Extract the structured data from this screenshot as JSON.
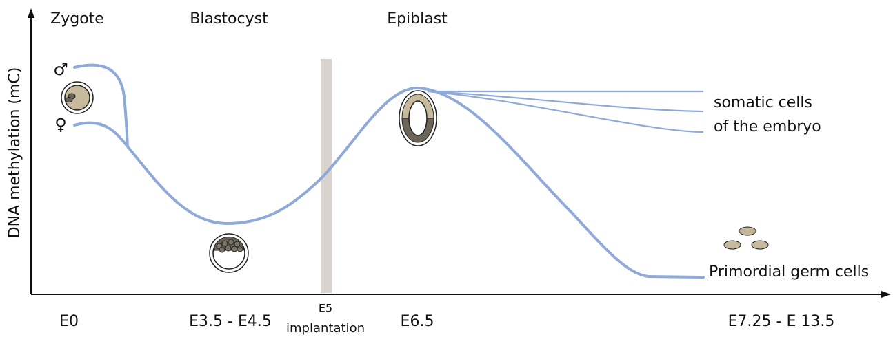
{
  "stages": [
    {
      "label": "Zygote",
      "time": "E0"
    },
    {
      "label": "Blastocyst",
      "time": "E3.5 - E4.5"
    },
    {
      "label": "Epiblast",
      "time": "E6.5"
    }
  ],
  "implantation": {
    "time": "E5",
    "label": "implantation"
  },
  "late_time": "E7.25 - E 13.5",
  "y_axis_label": "DNA methylation (mC)",
  "male_symbol": "♂",
  "female_symbol": "♀",
  "somatic_label": [
    "somatic cells",
    "of the embryo"
  ],
  "pgc_label": "Primordial germ cells"
}
